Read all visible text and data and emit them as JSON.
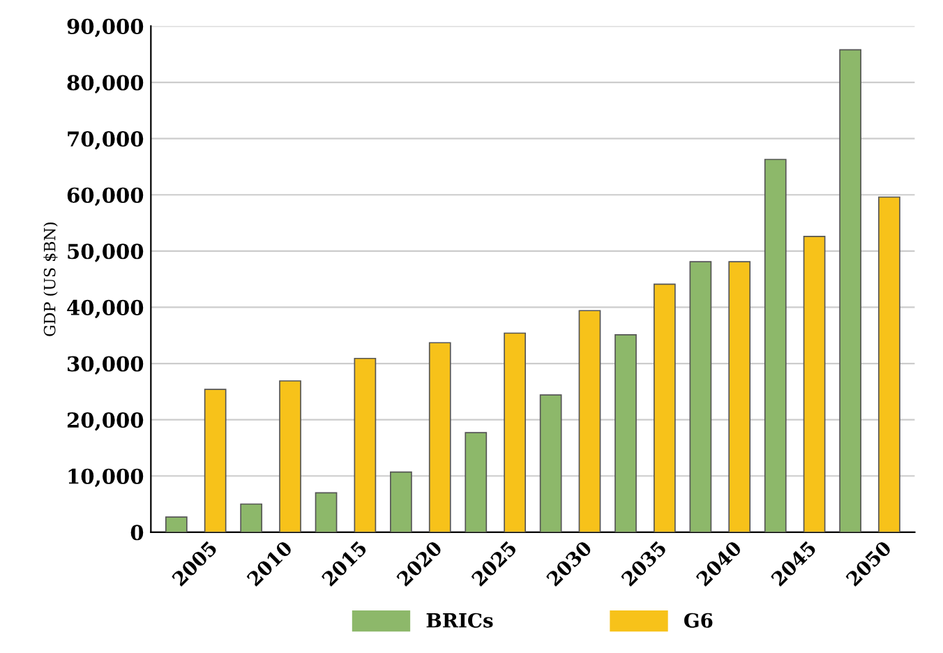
{
  "chart_data": {
    "type": "bar",
    "ylabel": "GDP (US $BN)",
    "categories": [
      "2005",
      "2010",
      "2015",
      "2020",
      "2025",
      "2030",
      "2035",
      "2040",
      "2045",
      "2050"
    ],
    "series": [
      {
        "name": "BRICs",
        "color": "#8db86a",
        "values": [
          2700,
          5000,
          7000,
          10700,
          17700,
          24400,
          35100,
          48100,
          66300,
          85800
        ]
      },
      {
        "name": "G6",
        "color": "#f7c21a",
        "values": [
          25400,
          26900,
          30900,
          33700,
          35400,
          39400,
          44100,
          48100,
          52600,
          59600
        ]
      }
    ],
    "ylim": [
      0,
      90000
    ],
    "yticks": [
      {
        "value": 0,
        "label": "0"
      },
      {
        "value": 10000,
        "label": "10,000"
      },
      {
        "value": 20000,
        "label": "20,000"
      },
      {
        "value": 30000,
        "label": "30,000"
      },
      {
        "value": 40000,
        "label": "40,000"
      },
      {
        "value": 50000,
        "label": "50,000"
      },
      {
        "value": 60000,
        "label": "60,000"
      },
      {
        "value": 70000,
        "label": "70,000"
      },
      {
        "value": 80000,
        "label": "80,000"
      },
      {
        "value": 90000,
        "label": "90,000"
      }
    ],
    "grid": "y",
    "legend": "bottom"
  }
}
